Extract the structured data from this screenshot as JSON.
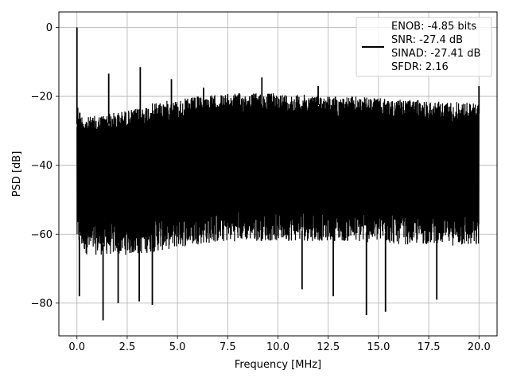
{
  "chart_data": {
    "type": "line",
    "title": "",
    "xlabel": "Frequency [MHz]",
    "ylabel": "PSD [dB]",
    "xlim": [
      -0.9,
      20.9
    ],
    "ylim": [
      -89.5,
      4.5
    ],
    "xticks": [
      0.0,
      2.5,
      5.0,
      7.5,
      10.0,
      12.5,
      15.0,
      17.5,
      20.0
    ],
    "xtick_labels": [
      "0.0",
      "2.5",
      "5.0",
      "7.5",
      "10.0",
      "12.5",
      "15.0",
      "17.5",
      "20.0"
    ],
    "yticks": [
      0,
      -20,
      -40,
      -60,
      -80
    ],
    "ytick_labels": [
      "0",
      "−20",
      "−40",
      "−60",
      "−80"
    ],
    "grid": true,
    "legend": {
      "placement": "top-right",
      "entries": [
        "ENOB: -4.85 bits",
        "SNR: -27.4 dB",
        "SINAD: -27.41 dB",
        "SFDR: 2.16"
      ]
    },
    "series": [
      {
        "color": "#000000",
        "envelope_upper": {
          "x": [
            0.0,
            0.05,
            0.2,
            0.5,
            1.0,
            1.5,
            2.0,
            2.5,
            3.0,
            3.5,
            4.0,
            5.0,
            6.0,
            7.0,
            8.0,
            9.0,
            10.0,
            11.0,
            12.0,
            13.0,
            14.0,
            15.0,
            16.0,
            17.0,
            18.0,
            19.0,
            20.0
          ],
          "y": [
            -25,
            -22,
            -25,
            -26,
            -25.5,
            -25,
            -24.5,
            -24,
            -23.5,
            -22.5,
            -21.5,
            -21,
            -20,
            -19.5,
            -19,
            -19,
            -19,
            -19.5,
            -19.5,
            -20,
            -20,
            -20.5,
            -21,
            -21,
            -21.5,
            -21.5,
            -22
          ]
        },
        "envelope_lower": {
          "x": [
            0.0,
            0.5,
            1.0,
            2.0,
            3.0,
            4.0,
            5.0,
            6.0,
            7.0,
            8.0,
            9.0,
            10.0,
            11.0,
            12.0,
            13.0,
            14.0,
            15.0,
            16.0,
            17.0,
            18.0,
            19.0,
            20.0
          ],
          "y": [
            -63,
            -66,
            -66,
            -66,
            -66,
            -65,
            -64,
            -63,
            -62.5,
            -62,
            -62,
            -62,
            -62,
            -62,
            -62,
            -62.5,
            -62.5,
            -63,
            -63,
            -63,
            -63.5,
            -64
          ]
        },
        "peaks": [
          {
            "x": 0.0,
            "y": 0.0
          },
          {
            "x": 1.58,
            "y": -13.4
          },
          {
            "x": 3.15,
            "y": -11.5
          },
          {
            "x": 4.7,
            "y": -15.0
          },
          {
            "x": 9.2,
            "y": -14.5
          },
          {
            "x": 6.3,
            "y": -17.5
          },
          {
            "x": 12.0,
            "y": -17.0
          },
          {
            "x": 20.0,
            "y": -17.0
          }
        ],
        "dips": [
          {
            "x": 0.12,
            "y": -78.0
          },
          {
            "x": 1.3,
            "y": -85.0
          },
          {
            "x": 2.05,
            "y": -80.0
          },
          {
            "x": 3.1,
            "y": -79.5
          },
          {
            "x": 3.75,
            "y": -80.5
          },
          {
            "x": 11.2,
            "y": -76.0
          },
          {
            "x": 12.75,
            "y": -78.0
          },
          {
            "x": 14.4,
            "y": -83.5
          },
          {
            "x": 15.35,
            "y": -82.5
          },
          {
            "x": 17.9,
            "y": -79.0
          }
        ]
      }
    ]
  }
}
